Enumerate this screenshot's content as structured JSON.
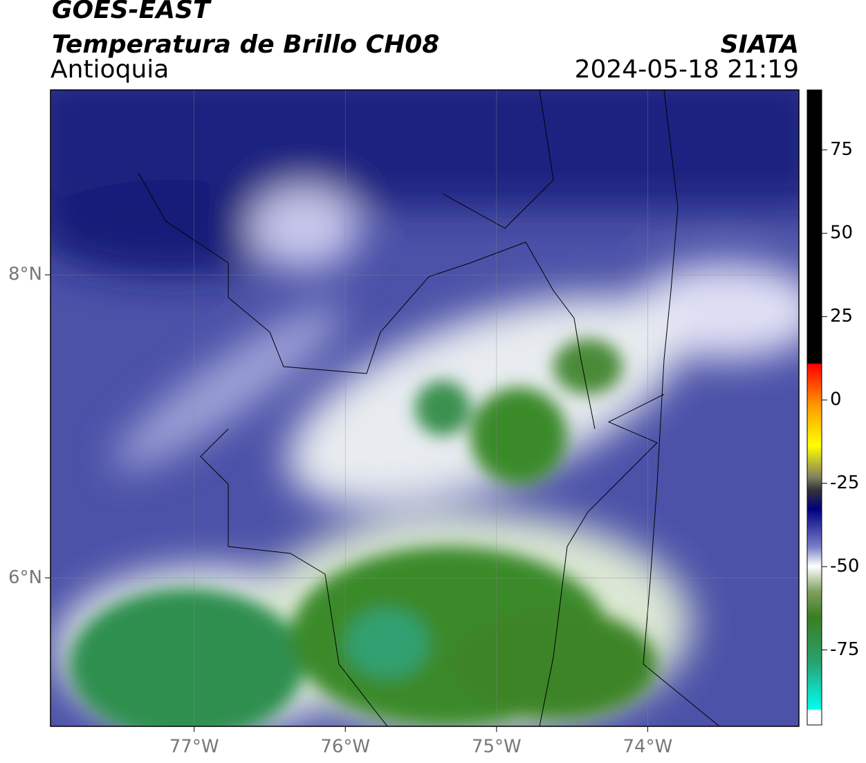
{
  "header": {
    "line1": "GOES-EAST",
    "line2": "Temperatura de Brillo CH08",
    "region": "Antioquia",
    "source": "SIATA",
    "datetime": "2024-05-18 21:19"
  },
  "map": {
    "xlim": [
      -77.95,
      -73.0
    ],
    "ylim": [
      5.02,
      9.22
    ],
    "xticks": [
      {
        "value": -77,
        "label": "77°W"
      },
      {
        "value": -76,
        "label": "76°W"
      },
      {
        "value": -75,
        "label": "75°W"
      },
      {
        "value": -74,
        "label": "74°W"
      }
    ],
    "yticks": [
      {
        "value": 8,
        "label": "8°N"
      },
      {
        "value": 6,
        "label": "6°N"
      }
    ],
    "grid": true
  },
  "colorbar": {
    "lim": [
      -97.5,
      93
    ],
    "ticks": [
      75,
      50,
      25,
      0,
      -25,
      -50,
      -75
    ]
  }
}
